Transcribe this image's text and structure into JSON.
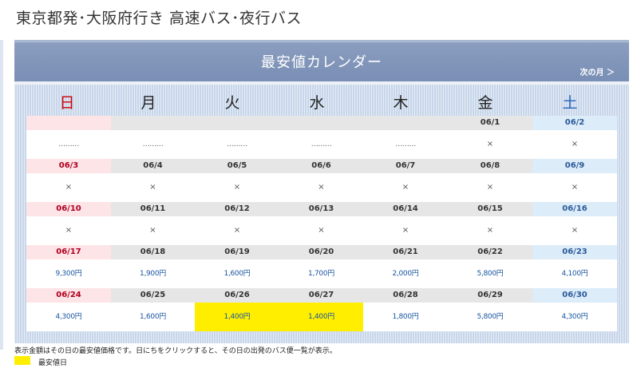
{
  "page": {
    "title": "東京都発･大阪府行き 高速バス･夜行バス"
  },
  "calendar": {
    "title": "最安値カレンダー",
    "next_month": "次の月 ＞",
    "weekdays": [
      "日",
      "月",
      "火",
      "水",
      "木",
      "金",
      "土"
    ],
    "weeks": [
      {
        "dates": [
          "",
          "",
          "",
          "",
          "",
          "06/1",
          "06/2"
        ],
        "prices": [
          "………",
          "………",
          "………",
          "………",
          "………",
          "×",
          "×"
        ]
      },
      {
        "dates": [
          "06/3",
          "06/4",
          "06/5",
          "06/6",
          "06/7",
          "06/8",
          "06/9"
        ],
        "prices": [
          "×",
          "×",
          "×",
          "×",
          "×",
          "×",
          "×"
        ]
      },
      {
        "dates": [
          "06/10",
          "06/11",
          "06/12",
          "06/13",
          "06/14",
          "06/15",
          "06/16"
        ],
        "prices": [
          "×",
          "×",
          "×",
          "×",
          "×",
          "×",
          "×"
        ]
      },
      {
        "dates": [
          "06/17",
          "06/18",
          "06/19",
          "06/20",
          "06/21",
          "06/22",
          "06/23"
        ],
        "prices": [
          "9,300円",
          "1,900円",
          "1,600円",
          "1,700円",
          "2,000円",
          "5,800円",
          "4,100円"
        ]
      },
      {
        "dates": [
          "06/24",
          "06/25",
          "06/26",
          "06/27",
          "06/28",
          "06/29",
          "06/30"
        ],
        "prices": [
          "4,300円",
          "1,600円",
          "1,400円",
          "1,400円",
          "1,800円",
          "5,800円",
          "4,300円"
        ]
      }
    ],
    "cheapest_price": "1,400円"
  },
  "footer": {
    "note": "表示金額はその日の最安値価格です。日にちをクリックすると、その日の出発のバス便一覧が表示。",
    "legend_label": "最安値日"
  },
  "colors": {
    "header": "#8296ba",
    "sunday": "#b00020",
    "saturday": "#2c5a9a",
    "price_text": "#1a56a0",
    "cheapest_highlight": "#ffee00"
  }
}
